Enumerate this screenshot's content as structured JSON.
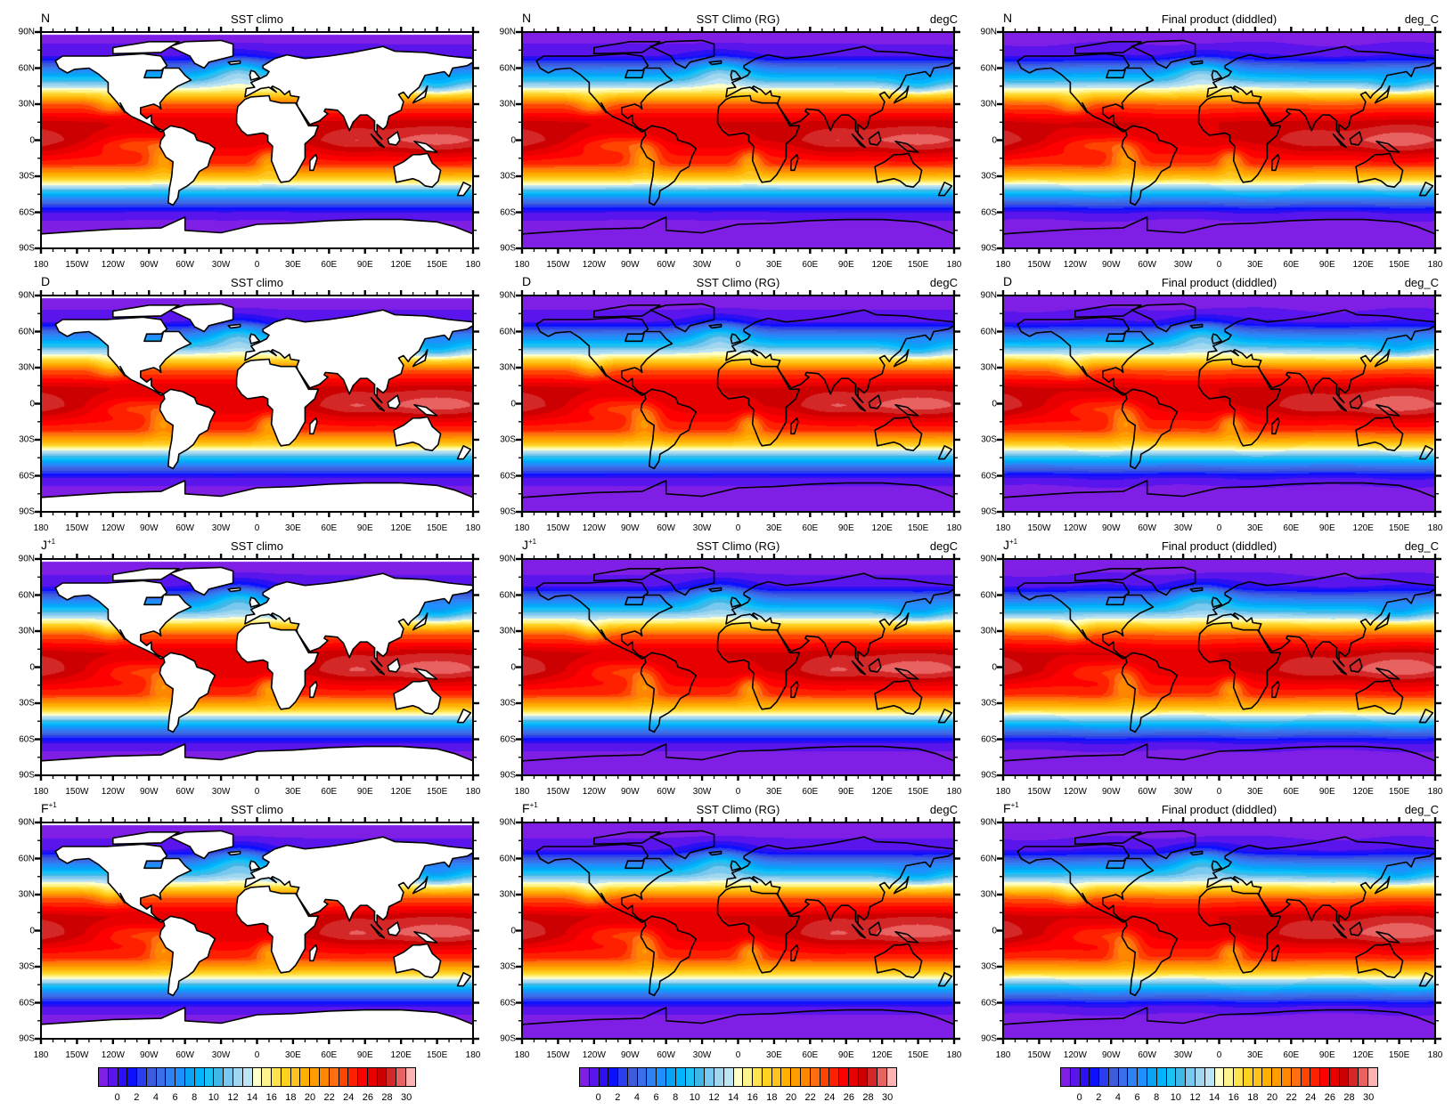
{
  "rows": [
    {
      "label": "N",
      "sup": ""
    },
    {
      "label": "D",
      "sup": ""
    },
    {
      "label": "J",
      "sup": "+1"
    },
    {
      "label": "F",
      "sup": "+1"
    }
  ],
  "columns": [
    {
      "title": "SST climo",
      "units": "",
      "land_masked": true
    },
    {
      "title": "SST Climo (RG)",
      "units": "degC",
      "land_masked": false
    },
    {
      "title": "Final product (diddled)",
      "units": "deg_C",
      "land_masked": false
    }
  ],
  "lat_ticks": [
    "90N",
    "60N",
    "30N",
    "0",
    "30S",
    "60S",
    "90S"
  ],
  "lon_ticks": [
    "180",
    "150W",
    "120W",
    "90W",
    "60W",
    "30W",
    "0",
    "30E",
    "60E",
    "90E",
    "120E",
    "150E",
    "180"
  ],
  "colorbar": {
    "labels": [
      "0",
      "2",
      "4",
      "6",
      "8",
      "10",
      "12",
      "14",
      "16",
      "18",
      "20",
      "22",
      "24",
      "26",
      "28",
      "30"
    ],
    "colors": [
      "#7f1fe6",
      "#5a14ec",
      "#2c10f2",
      "#0c10ff",
      "#2a3ef0",
      "#3c5cdc",
      "#3a6eea",
      "#2e82f2",
      "#1e90ff",
      "#0aa2f2",
      "#00b4ff",
      "#1ac2f6",
      "#40b8e6",
      "#78c8f0",
      "#a0d6ee",
      "#bce4f4",
      "#ffffc8",
      "#fff48c",
      "#ffe24e",
      "#ffd220",
      "#ffc21e",
      "#ffb000",
      "#ff9c00",
      "#ff8600",
      "#ff6e10",
      "#ff4400",
      "#ff2000",
      "#ff0000",
      "#e80000",
      "#cc0000",
      "#d42828",
      "#e86262",
      "#ffb2b2"
    ]
  }
}
